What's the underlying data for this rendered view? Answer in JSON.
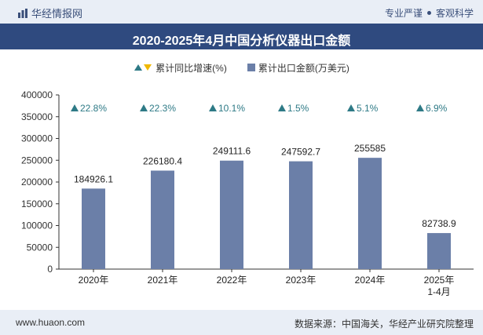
{
  "header": {
    "brand": "华经情报网",
    "tagline_left": "专业严谨",
    "tagline_right": "客观科学"
  },
  "footer": {
    "site": "www.huaon.com",
    "source": "数据来源：中国海关，华经产业研究院整理"
  },
  "colors": {
    "bar": "#6b7fa8",
    "growth_marker": "#2e7a86",
    "legend_down": "#f0b800",
    "title_bg": "#2f4a7f"
  },
  "chart_data": {
    "type": "bar",
    "title": "2020-2025年4月中国分析仪器出口金额",
    "categories": [
      "2020年",
      "2021年",
      "2022年",
      "2023年",
      "2024年",
      "2025年\n1-4月"
    ],
    "series": [
      {
        "name": "累计出口金额(万美元)",
        "values": [
          184926.1,
          226180.4,
          249111.6,
          247592.7,
          255585,
          82738.9
        ],
        "labels": [
          "184926.1",
          "226180.4",
          "249111.6",
          "247592.7",
          "255585",
          "82738.9"
        ]
      },
      {
        "name": "累计同比增速(%)",
        "values": [
          22.8,
          22.3,
          10.1,
          1.5,
          5.1,
          6.9
        ],
        "labels": [
          "22.8%",
          "22.3%",
          "10.1%",
          "1.5%",
          "5.1%",
          "6.9%"
        ]
      }
    ],
    "ylim": [
      0,
      400000
    ],
    "yticks": [
      0,
      50000,
      100000,
      150000,
      200000,
      250000,
      300000,
      350000,
      400000
    ],
    "ytick_labels": [
      "0",
      "50000",
      "100000",
      "150000",
      "200000",
      "250000",
      "300000",
      "350000",
      "400000"
    ],
    "legend_position": "top-center",
    "grid": false
  }
}
